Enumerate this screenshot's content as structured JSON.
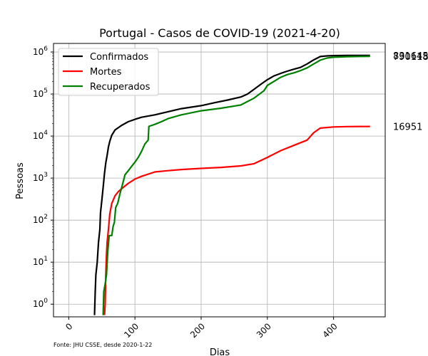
{
  "chart_data": {
    "type": "line",
    "title": "Portugal - Casos de COVID-19 (2021-4-20)",
    "xlabel": "Dias",
    "ylabel": "Pessoas",
    "source_note": "Fonte: JHU CSSE, desde 2020-1-22",
    "xlim": [
      -23,
      478
    ],
    "ylim": [
      0.5,
      1600000
    ],
    "y_scale": "log",
    "x_ticks": [
      0,
      100,
      200,
      300,
      400
    ],
    "x_tick_labels": [
      "0",
      "100",
      "200",
      "300",
      "400"
    ],
    "y_ticks": [
      1,
      10,
      100,
      1000,
      10000,
      100000,
      1000000
    ],
    "y_tick_labels": [
      "10^0",
      "10^1",
      "10^2",
      "10^3",
      "10^4",
      "10^5",
      "10^6"
    ],
    "grid": true,
    "legend_position": "top-left",
    "series": [
      {
        "name": "Confirmados",
        "color": "#000000",
        "end_label": "831645",
        "points": [
          [
            39,
            0.55
          ],
          [
            40,
            2
          ],
          [
            41,
            5
          ],
          [
            43,
            10
          ],
          [
            45,
            30
          ],
          [
            47,
            60
          ],
          [
            48,
            150
          ],
          [
            50,
            300
          ],
          [
            52,
            600
          ],
          [
            54,
            1300
          ],
          [
            56,
            2300
          ],
          [
            58,
            3500
          ],
          [
            60,
            5500
          ],
          [
            62,
            7500
          ],
          [
            65,
            10500
          ],
          [
            70,
            14000
          ],
          [
            80,
            18000
          ],
          [
            90,
            22000
          ],
          [
            100,
            25000
          ],
          [
            110,
            28000
          ],
          [
            130,
            32000
          ],
          [
            150,
            38000
          ],
          [
            170,
            45000
          ],
          [
            200,
            53000
          ],
          [
            220,
            62000
          ],
          [
            240,
            72000
          ],
          [
            260,
            85000
          ],
          [
            270,
            100000
          ],
          [
            280,
            130000
          ],
          [
            290,
            170000
          ],
          [
            300,
            220000
          ],
          [
            310,
            270000
          ],
          [
            320,
            310000
          ],
          [
            330,
            350000
          ],
          [
            340,
            390000
          ],
          [
            350,
            430000
          ],
          [
            360,
            520000
          ],
          [
            370,
            650000
          ],
          [
            380,
            780000
          ],
          [
            390,
            810000
          ],
          [
            400,
            820000
          ],
          [
            420,
            827000
          ],
          [
            440,
            830000
          ],
          [
            455,
            831645
          ]
        ]
      },
      {
        "name": "Mortes",
        "color": "#ff0000",
        "end_label": "16951",
        "points": [
          [
            54,
            0.55
          ],
          [
            55,
            1
          ],
          [
            56,
            5
          ],
          [
            57,
            15
          ],
          [
            58,
            30
          ],
          [
            60,
            60
          ],
          [
            62,
            140
          ],
          [
            65,
            250
          ],
          [
            70,
            380
          ],
          [
            75,
            480
          ],
          [
            80,
            560
          ],
          [
            90,
            750
          ],
          [
            100,
            950
          ],
          [
            110,
            1100
          ],
          [
            130,
            1400
          ],
          [
            150,
            1500
          ],
          [
            170,
            1600
          ],
          [
            200,
            1700
          ],
          [
            230,
            1800
          ],
          [
            260,
            1950
          ],
          [
            280,
            2200
          ],
          [
            300,
            3100
          ],
          [
            320,
            4500
          ],
          [
            340,
            6000
          ],
          [
            360,
            8000
          ],
          [
            370,
            12000
          ],
          [
            380,
            15500
          ],
          [
            400,
            16500
          ],
          [
            420,
            16800
          ],
          [
            455,
            16951
          ]
        ]
      },
      {
        "name": "Recuperados",
        "color": "#008000",
        "end_label": "790118",
        "points": [
          [
            52,
            0.55
          ],
          [
            53,
            2
          ],
          [
            55,
            3
          ],
          [
            57,
            5
          ],
          [
            59,
            18
          ],
          [
            61,
            43
          ],
          [
            65,
            43
          ],
          [
            67,
            70
          ],
          [
            69,
            90
          ],
          [
            71,
            200
          ],
          [
            74,
            250
          ],
          [
            77,
            400
          ],
          [
            80,
            600
          ],
          [
            83,
            900
          ],
          [
            85,
            1200
          ],
          [
            90,
            1500
          ],
          [
            95,
            1900
          ],
          [
            100,
            2400
          ],
          [
            105,
            3100
          ],
          [
            110,
            4300
          ],
          [
            115,
            6500
          ],
          [
            120,
            8000
          ],
          [
            121,
            17000
          ],
          [
            130,
            19000
          ],
          [
            140,
            22000
          ],
          [
            150,
            26000
          ],
          [
            170,
            32000
          ],
          [
            200,
            40000
          ],
          [
            230,
            46000
          ],
          [
            260,
            55000
          ],
          [
            280,
            80000
          ],
          [
            295,
            120000
          ],
          [
            300,
            160000
          ],
          [
            310,
            200000
          ],
          [
            320,
            250000
          ],
          [
            330,
            290000
          ],
          [
            340,
            320000
          ],
          [
            350,
            360000
          ],
          [
            360,
            420000
          ],
          [
            370,
            520000
          ],
          [
            380,
            640000
          ],
          [
            390,
            720000
          ],
          [
            400,
            750000
          ],
          [
            420,
            775000
          ],
          [
            440,
            785000
          ],
          [
            455,
            790118
          ]
        ]
      }
    ]
  }
}
